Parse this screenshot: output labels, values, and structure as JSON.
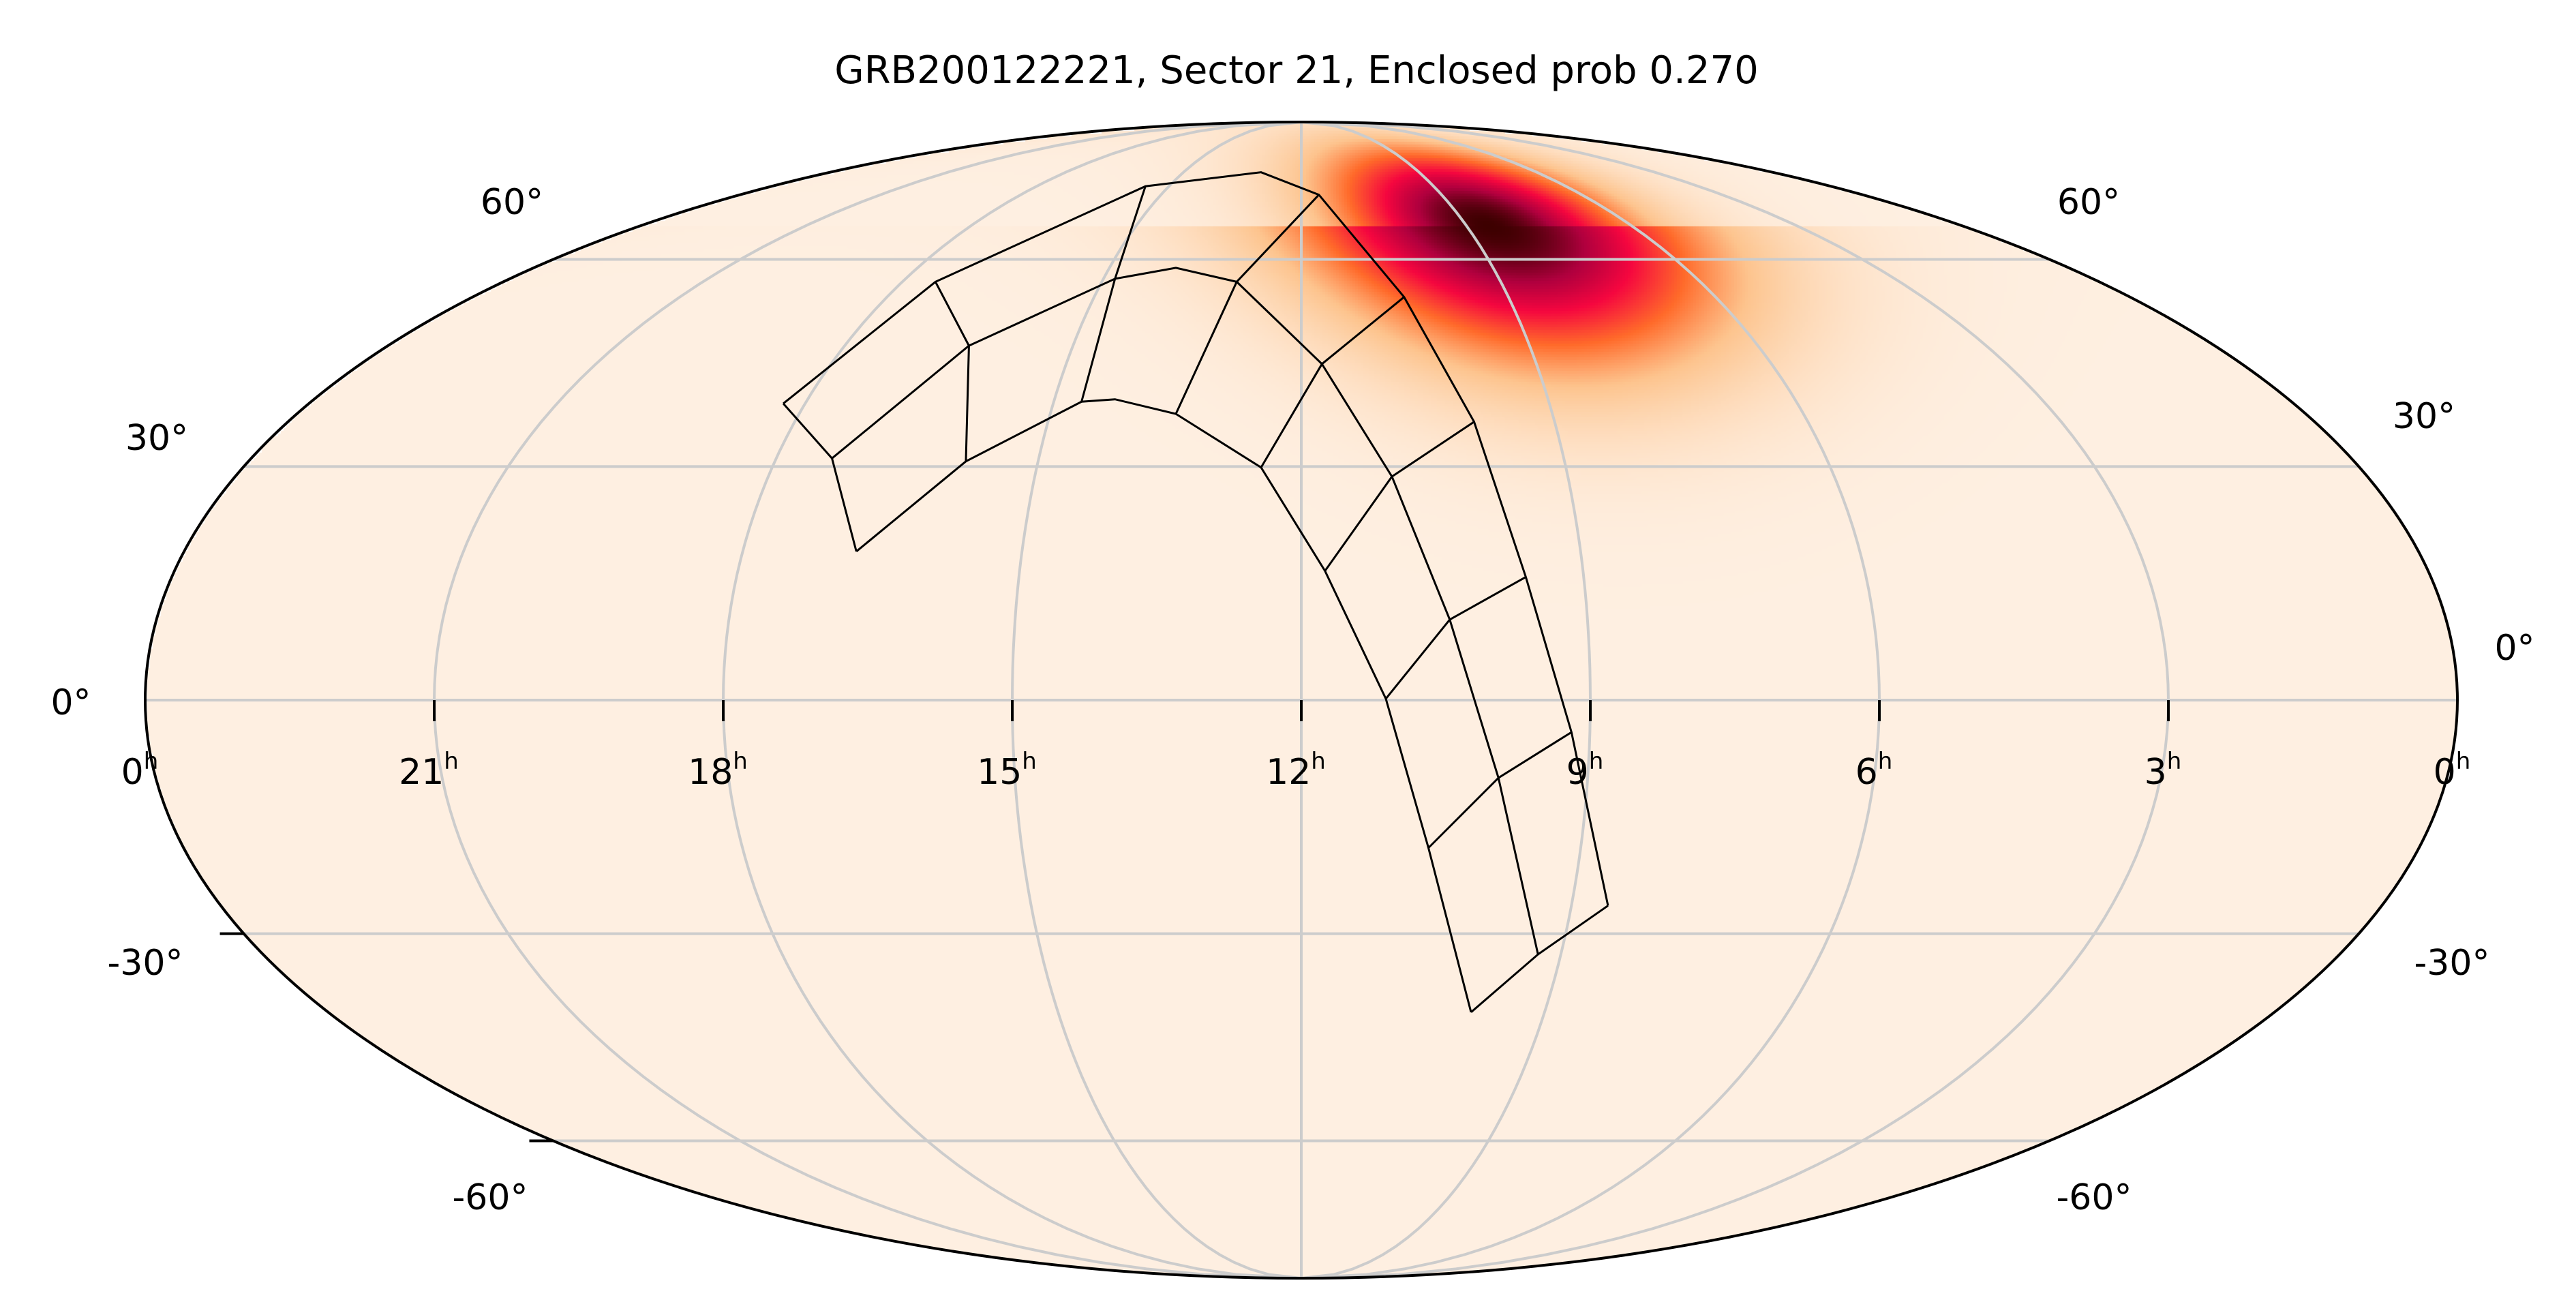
{
  "chart_data": {
    "type": "heatmap",
    "projection": "mollweide",
    "title": "GRB200122221, Sector 21, Enclosed prob 0.270",
    "ra_tick_labels": [
      "0",
      "21",
      "18",
      "15",
      "12",
      "9",
      "6",
      "3",
      "0"
    ],
    "ra_tick_unit": "h",
    "dec_tick_labels": [
      "60°",
      "30°",
      "0°",
      "-30°",
      "-60°"
    ],
    "grid": true,
    "colormap": [
      "#feefe1",
      "#fdc48e",
      "#ff6a2a",
      "#f5063f",
      "#b0003e",
      "#3d0000"
    ],
    "probability_peak": {
      "ra_deg": 129,
      "dec_deg": 66
    },
    "footprint_color": "#000000",
    "grid_color": "#cccccc",
    "enclosed_prob": 0.27
  }
}
